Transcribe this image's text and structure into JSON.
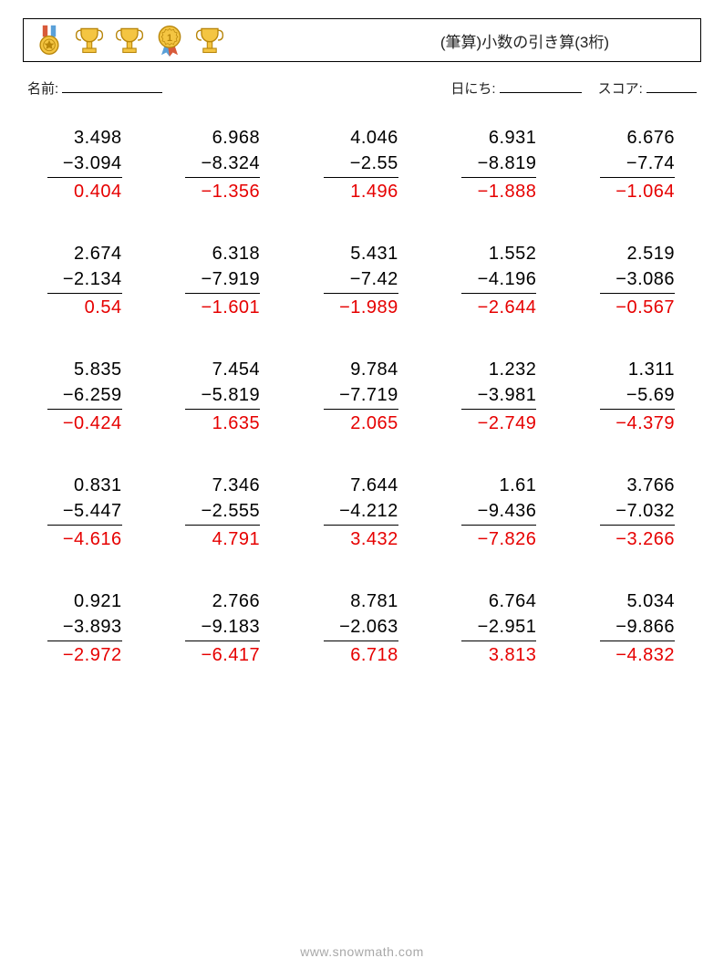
{
  "header": {
    "title": "(筆算)小数の引き算(3桁)"
  },
  "info": {
    "name_label": "名前:",
    "date_label": "日にち:",
    "score_label": "スコア:"
  },
  "layout": {
    "columns": 5,
    "rows": 5,
    "text_color": "#000000",
    "answer_color": "#e60000",
    "divider_color": "#000000",
    "background_color": "#ffffff",
    "font_size": 20
  },
  "problems": [
    [
      {
        "minuend": "3.498",
        "subtrahend": "3.094",
        "answer": "0.404"
      },
      {
        "minuend": "6.968",
        "subtrahend": "8.324",
        "answer": "−1.356"
      },
      {
        "minuend": "4.046",
        "subtrahend": "2.55",
        "answer": "1.496"
      },
      {
        "minuend": "6.931",
        "subtrahend": "8.819",
        "answer": "−1.888"
      },
      {
        "minuend": "6.676",
        "subtrahend": "7.74",
        "answer": "−1.064"
      }
    ],
    [
      {
        "minuend": "2.674",
        "subtrahend": "2.134",
        "answer": "0.54"
      },
      {
        "minuend": "6.318",
        "subtrahend": "7.919",
        "answer": "−1.601"
      },
      {
        "minuend": "5.431",
        "subtrahend": "7.42",
        "answer": "−1.989"
      },
      {
        "minuend": "1.552",
        "subtrahend": "4.196",
        "answer": "−2.644"
      },
      {
        "minuend": "2.519",
        "subtrahend": "3.086",
        "answer": "−0.567"
      }
    ],
    [
      {
        "minuend": "5.835",
        "subtrahend": "6.259",
        "answer": "−0.424"
      },
      {
        "minuend": "7.454",
        "subtrahend": "5.819",
        "answer": "1.635"
      },
      {
        "minuend": "9.784",
        "subtrahend": "7.719",
        "answer": "2.065"
      },
      {
        "minuend": "1.232",
        "subtrahend": "3.981",
        "answer": "−2.749"
      },
      {
        "minuend": "1.311",
        "subtrahend": "5.69",
        "answer": "−4.379"
      }
    ],
    [
      {
        "minuend": "0.831",
        "subtrahend": "5.447",
        "answer": "−4.616"
      },
      {
        "minuend": "7.346",
        "subtrahend": "2.555",
        "answer": "4.791"
      },
      {
        "minuend": "7.644",
        "subtrahend": "4.212",
        "answer": "3.432"
      },
      {
        "minuend": "1.61",
        "subtrahend": "9.436",
        "answer": "−7.826"
      },
      {
        "minuend": "3.766",
        "subtrahend": "7.032",
        "answer": "−3.266"
      }
    ],
    [
      {
        "minuend": "0.921",
        "subtrahend": "3.893",
        "answer": "−2.972"
      },
      {
        "minuend": "2.766",
        "subtrahend": "9.183",
        "answer": "−6.417"
      },
      {
        "minuend": "8.781",
        "subtrahend": "2.063",
        "answer": "6.718"
      },
      {
        "minuend": "6.764",
        "subtrahend": "2.951",
        "answer": "3.813"
      },
      {
        "minuend": "5.034",
        "subtrahend": "9.866",
        "answer": "−4.832"
      }
    ]
  ],
  "footer": {
    "url": "www.snowmath.com"
  },
  "watermark": {
    "text": "",
    "color": "rgba(120,120,120,0.09)"
  },
  "trophies": [
    {
      "type": "medal",
      "fill": "#e8a23c",
      "accent": "#d85a3a"
    },
    {
      "type": "cup",
      "fill": "#f4c542"
    },
    {
      "type": "cup",
      "fill": "#f4c542"
    },
    {
      "type": "badge",
      "fill": "#f4c542",
      "ribbon": "#5aa0d8"
    },
    {
      "type": "cup",
      "fill": "#f4c542"
    }
  ]
}
